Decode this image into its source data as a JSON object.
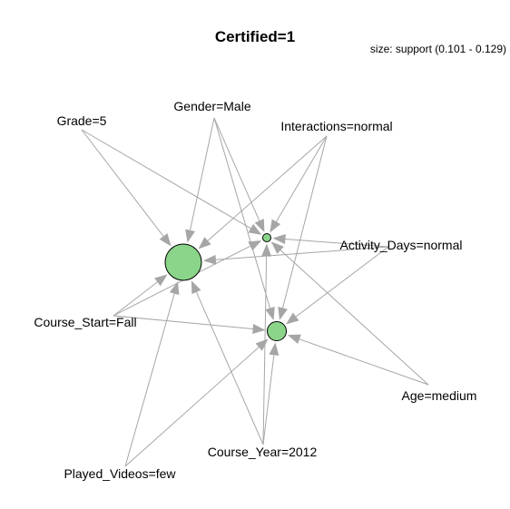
{
  "title": "Certified=1",
  "legend": "size: support (0.101 - 0.129)",
  "colors": {
    "edge": "#a6a6a6",
    "node_fill": "#8ad58a",
    "node_stroke": "#000000"
  },
  "items": [
    {
      "id": "grade",
      "label": "Grade=5"
    },
    {
      "id": "gender",
      "label": "Gender=Male"
    },
    {
      "id": "interactions",
      "label": "Interactions=normal"
    },
    {
      "id": "activity",
      "label": "Activity_Days=normal"
    },
    {
      "id": "coursestart",
      "label": "Course_Start=Fall"
    },
    {
      "id": "age",
      "label": "Age=medium"
    },
    {
      "id": "courseyear",
      "label": "Course_Year=2012"
    },
    {
      "id": "played",
      "label": "Played_Videos=few"
    }
  ],
  "rules": [
    {
      "id": "rule-big",
      "support_rank": "max"
    },
    {
      "id": "rule-small",
      "support_rank": "min"
    },
    {
      "id": "rule-mid",
      "support_rank": "mid"
    }
  ],
  "edges": [
    [
      "grade",
      "rule-big"
    ],
    [
      "grade",
      "rule-small"
    ],
    [
      "gender",
      "rule-big"
    ],
    [
      "gender",
      "rule-small"
    ],
    [
      "gender",
      "rule-mid"
    ],
    [
      "interactions",
      "rule-big"
    ],
    [
      "interactions",
      "rule-small"
    ],
    [
      "interactions",
      "rule-mid"
    ],
    [
      "activity",
      "rule-big"
    ],
    [
      "activity",
      "rule-small"
    ],
    [
      "activity",
      "rule-mid"
    ],
    [
      "coursestart",
      "rule-big"
    ],
    [
      "coursestart",
      "rule-small"
    ],
    [
      "coursestart",
      "rule-mid"
    ],
    [
      "age",
      "rule-small"
    ],
    [
      "age",
      "rule-mid"
    ],
    [
      "courseyear",
      "rule-big"
    ],
    [
      "courseyear",
      "rule-small"
    ],
    [
      "courseyear",
      "rule-mid"
    ],
    [
      "played",
      "rule-big"
    ],
    [
      "played",
      "rule-mid"
    ]
  ]
}
